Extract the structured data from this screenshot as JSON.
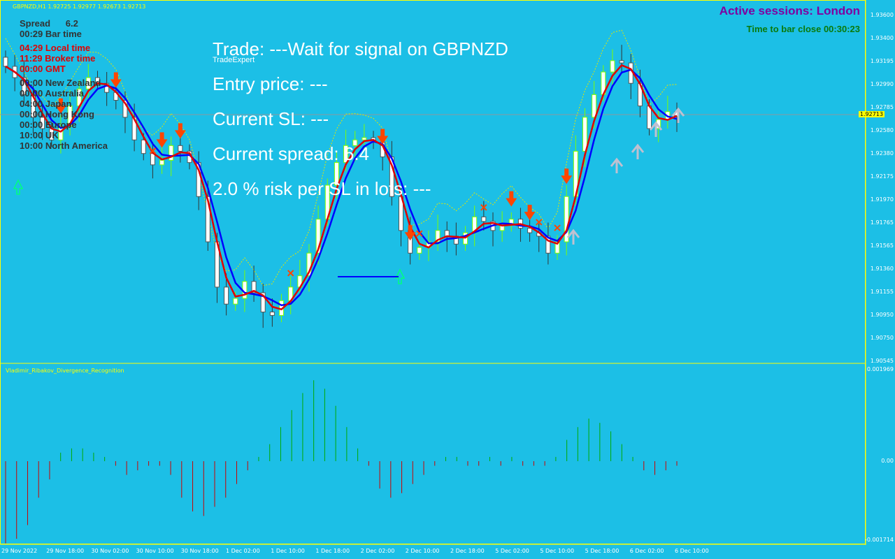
{
  "symbol_header": "GBPNZD,H1  1.92725 1.92977 1.92673 1.92713",
  "indicator_name": "Vladimir_Ribakov_Divergence_Recognition",
  "sessions": {
    "label": "Active sessions:  London",
    "bar_close": "Time to bar close 00:30:23"
  },
  "info_panel": {
    "spread_label": "Spread",
    "spread_value": "6.2",
    "rows": [
      {
        "time": "00:29",
        "label": "Bar time",
        "red": false
      },
      {
        "time": "04:29",
        "label": "Local time",
        "red": true
      },
      {
        "time": "11:29",
        "label": "Broker time",
        "red": true
      },
      {
        "time": "00:00",
        "label": "GMT",
        "red": true
      },
      {
        "time": "00:00",
        "label": "New Zealand",
        "red": false
      },
      {
        "time": "00:00",
        "label": "Australia",
        "red": false
      },
      {
        "time": "04:00",
        "label": "Japan",
        "red": false
      },
      {
        "time": "00:00",
        "label": "Hong Kong",
        "red": false
      },
      {
        "time": "00:00",
        "label": "Europe",
        "red": false
      },
      {
        "time": "10:00",
        "label": "UK",
        "red": false
      },
      {
        "time": "10:00",
        "label": "North America",
        "red": false
      }
    ]
  },
  "trade_panel": {
    "trade": "Trade: ---Wait for signal on  GBPNZD",
    "source": "TradeExpert",
    "entry": "Entry price: ---",
    "sl": "Current SL: ---",
    "spread": "Current spread: 6.4",
    "risk": "2.0 % risk per SL in lots: ---"
  },
  "price_axis": [
    "1.93600",
    "1.93400",
    "1.93195",
    "1.92990",
    "1.92785",
    "1.92580",
    "1.92380",
    "1.92175",
    "1.91970",
    "1.91765",
    "1.91565",
    "1.91360",
    "1.91155",
    "1.90950",
    "1.90750",
    "1.90545"
  ],
  "current_price": "1.92713",
  "indicator_axis": [
    "0.001969",
    "0.00",
    "-0.001714"
  ],
  "time_axis": [
    "29 Nov 2022",
    "29 Nov 18:00",
    "30 Nov 02:00",
    "30 Nov 10:00",
    "30 Nov 18:00",
    "1 Dec 02:00",
    "1 Dec 10:00",
    "1 Dec 18:00",
    "2 Dec 02:00",
    "2 Dec 10:00",
    "2 Dec 18:00",
    "5 Dec 02:00",
    "5 Dec 10:00",
    "5 Dec 18:00",
    "6 Dec 02:00",
    "6 Dec 10:00"
  ],
  "colors": {
    "background": "#1cbfe6",
    "bull_candle": "#ffffff",
    "bear_candle": "#ffffff",
    "wick_bull": "#7fff00",
    "wick_bear": "#333333",
    "ma_red": "#e00000",
    "ma_blue": "#0000ff",
    "sell_arrow": "#ff4500",
    "buy_arrow": "#00ff7f",
    "hist_up": "#00aa00",
    "hist_down": "#cc0000"
  },
  "chart_data": {
    "type": "line",
    "title": "GBPNZD,H1",
    "close": [
      1.9315,
      1.9305,
      1.929,
      1.927,
      1.926,
      1.925,
      1.9262,
      1.928,
      1.9295,
      1.9305,
      1.93,
      1.9292,
      1.9285,
      1.927,
      1.925,
      1.9238,
      1.9228,
      1.9232,
      1.9245,
      1.924,
      1.923,
      1.92,
      1.916,
      1.912,
      1.9105,
      1.911,
      1.9125,
      1.9115,
      1.9098,
      1.9095,
      1.9108,
      1.912,
      1.913,
      1.915,
      1.918,
      1.921,
      1.923,
      1.9245,
      1.925,
      1.9252,
      1.9248,
      1.9235,
      1.92,
      1.917,
      1.915,
      1.9155,
      1.916,
      1.917,
      1.9165,
      1.9158,
      1.9168,
      1.9182,
      1.9178,
      1.917,
      1.9175,
      1.918,
      1.9172,
      1.9168,
      1.9165,
      1.915,
      1.916,
      1.92,
      1.924,
      1.927,
      1.929,
      1.931,
      1.932,
      1.9318,
      1.93,
      1.928,
      1.926,
      1.9268,
      1.9275,
      1.9271
    ]
  }
}
